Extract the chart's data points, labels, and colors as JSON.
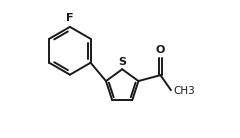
{
  "bg_color": "#ffffff",
  "line_color": "#1a1a1a",
  "line_width": 1.4,
  "font_family": "DejaVu Sans",
  "F_label": "F",
  "S_label": "S",
  "O_label": "O",
  "CH3_label": "CH3",
  "figsize": [
    2.4,
    1.38
  ],
  "dpi": 100
}
